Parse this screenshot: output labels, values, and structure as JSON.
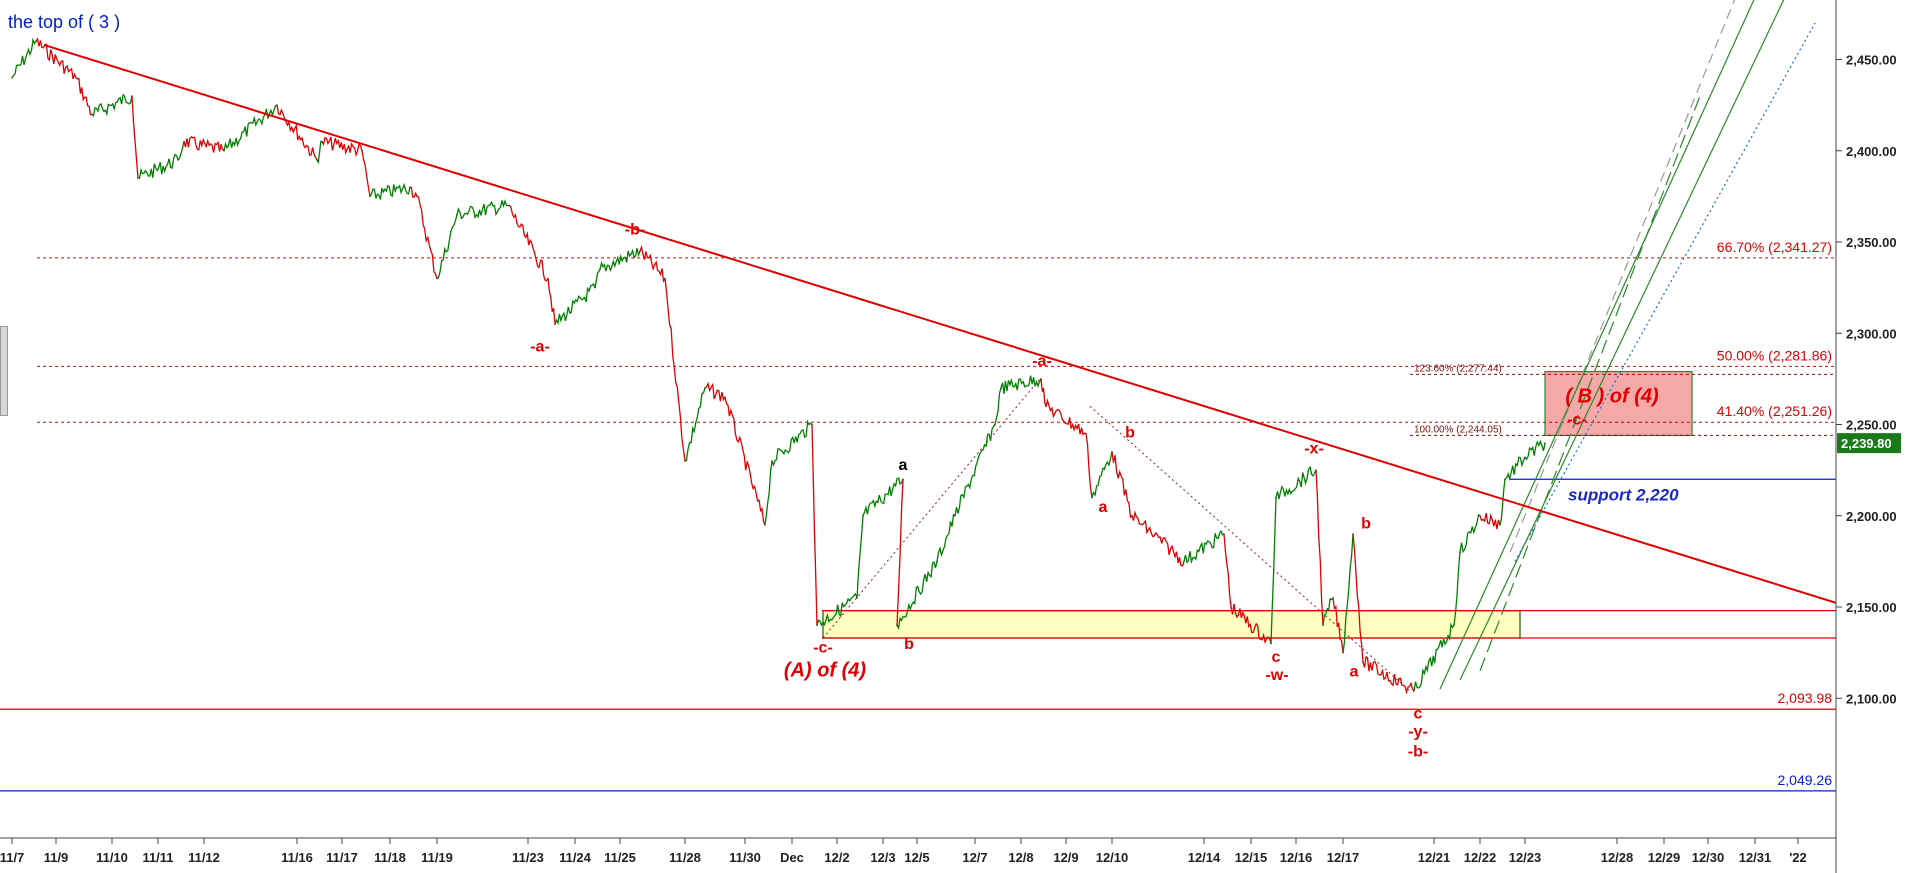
{
  "header": {
    "title": "the top of ( 3 )"
  },
  "chart_data": {
    "type": "line",
    "title": "the top of ( 3 )",
    "xlabel": "",
    "ylabel": "",
    "ylim": [
      2040,
      2480
    ],
    "y_ticks": [
      {
        "value": 2450,
        "label": "2,450.00"
      },
      {
        "value": 2400,
        "label": "2,400.00"
      },
      {
        "value": 2350,
        "label": "2,350.00"
      },
      {
        "value": 2300,
        "label": "2,300.00"
      },
      {
        "value": 2250,
        "label": "2,250.00"
      },
      {
        "value": 2200,
        "label": "2,200.00"
      },
      {
        "value": 2150,
        "label": "2,150.00"
      },
      {
        "value": 2100,
        "label": "2,100.00"
      }
    ],
    "x_ticks": [
      "11/7",
      "11/9",
      "11/10",
      "11/11",
      "11/12",
      "11/16",
      "11/17",
      "11/18",
      "11/19",
      "11/23",
      "11/24",
      "11/25",
      "11/28",
      "11/30",
      "Dec",
      "12/2",
      "12/3",
      "12/5",
      "12/7",
      "12/8",
      "12/9",
      "12/10",
      "12/14",
      "12/15",
      "12/16",
      "12/17",
      "12/21",
      "12/22",
      "12/23",
      "12/28",
      "12/29",
      "12/30",
      "12/31",
      "'22"
    ],
    "price_series": {
      "name": "",
      "colors": {
        "up": "#008000",
        "down": "#e00000"
      },
      "points": [
        [
          "11/7",
          2440
        ],
        [
          "11/9",
          2460
        ],
        [
          "11/9",
          2440
        ],
        [
          "11/10",
          2420
        ],
        [
          "11/10",
          2430
        ],
        [
          "11/11",
          2385
        ],
        [
          "11/11",
          2395
        ],
        [
          "11/12",
          2405
        ],
        [
          "11/12",
          2400
        ],
        [
          "11/16",
          2425
        ],
        [
          "11/16",
          2395
        ],
        [
          "11/17",
          2405
        ],
        [
          "11/17",
          2400
        ],
        [
          "11/18",
          2375
        ],
        [
          "11/18",
          2380
        ],
        [
          "11/19",
          2375
        ],
        [
          "11/19",
          2330
        ],
        [
          "11/19",
          2365
        ],
        [
          "11/23",
          2370
        ],
        [
          "11/23",
          2330
        ],
        [
          "11/24",
          2305
        ],
        [
          "11/24",
          2325
        ],
        [
          "11/25",
          2335
        ],
        [
          "11/25",
          2345
        ],
        [
          "11/28",
          2330
        ],
        [
          "11/28",
          2230
        ],
        [
          "11/28",
          2270
        ],
        [
          "11/30",
          2265
        ],
        [
          "11/30",
          2195
        ],
        [
          "Dec",
          2230
        ],
        [
          "Dec",
          2250
        ],
        [
          "12/2",
          2140
        ],
        [
          "12/2",
          2155
        ],
        [
          "12/3",
          2200
        ],
        [
          "12/3",
          2220
        ],
        [
          "12/5",
          2140
        ],
        [
          "12/5",
          2175
        ],
        [
          "12/7",
          2200
        ],
        [
          "12/7",
          2250
        ],
        [
          "12/8",
          2270
        ],
        [
          "12/8",
          2275
        ],
        [
          "12/9",
          2260
        ],
        [
          "12/9",
          2245
        ],
        [
          "12/10",
          2210
        ],
        [
          "12/10",
          2235
        ],
        [
          "12/10",
          2200
        ],
        [
          "12/14",
          2175
        ],
        [
          "12/14",
          2190
        ],
        [
          "12/15",
          2150
        ],
        [
          "12/15",
          2130
        ],
        [
          "12/16",
          2210
        ],
        [
          "12/16",
          2225
        ],
        [
          "12/17",
          2140
        ],
        [
          "12/17",
          2155
        ],
        [
          "12/17",
          2125
        ],
        [
          "12/17",
          2190
        ],
        [
          "12/17",
          2120
        ],
        [
          "12/21",
          2104
        ],
        [
          "12/21",
          2140
        ],
        [
          "12/22",
          2180
        ],
        [
          "12/22",
          2200
        ],
        [
          "12/22",
          2195
        ],
        [
          "12/23",
          2220
        ],
        [
          "12/23",
          2232
        ],
        [
          "12/23",
          2239.8
        ]
      ]
    },
    "last_price": "2,239.80",
    "horizontal_lines": [
      {
        "value": 2341.27,
        "label": "66.70% (2,341.27)",
        "style": "dotted",
        "color": "#e00000"
      },
      {
        "value": 2281.86,
        "label": "50.00% (2,281.86)",
        "style": "dotted",
        "color": "#e00000"
      },
      {
        "value": 2251.26,
        "label": "41.40% (2,251.26)",
        "style": "dotted",
        "color": "#e00000"
      },
      {
        "value": 2277.44,
        "label": "123.60% (2,277.44)",
        "style": "dotted",
        "color": "#7a1010"
      },
      {
        "value": 2244.05,
        "label": "100.00% (2,244.05)",
        "style": "dotted",
        "color": "#7a1010"
      },
      {
        "value": 2220,
        "label": "support 2,220",
        "style": "solid",
        "color": "#0020d0"
      },
      {
        "value": 2148,
        "label": "",
        "style": "solid",
        "color": "#e00000"
      },
      {
        "value": 2133,
        "label": "",
        "style": "solid",
        "color": "#e00000"
      },
      {
        "value": 2093.98,
        "label": "2,093.98",
        "style": "solid",
        "color": "#e00000"
      },
      {
        "value": 2049.26,
        "label": "2,049.26",
        "style": "solid",
        "color": "#0020d0"
      }
    ],
    "zones": [
      {
        "name": "support-zone",
        "from": "Dec",
        "to": "12/23",
        "y_from": 2133,
        "y_to": 2148,
        "color": "#ffffc0"
      },
      {
        "name": "target-zone",
        "from": "12/23",
        "to": "12/28",
        "y_from": 2244,
        "y_to": 2279,
        "color": "#f5a8a8"
      }
    ],
    "annotations": [
      {
        "text": "-b-",
        "x": "11/25",
        "y": 2354,
        "color": "#e00000"
      },
      {
        "text": "-a-",
        "x": "11/23",
        "y": 2290,
        "color": "#e00000"
      },
      {
        "text": "-a-",
        "x": "12/8",
        "y": 2282,
        "color": "#e00000"
      },
      {
        "text": "a",
        "x": "12/3",
        "y": 2225,
        "color": "#000000"
      },
      {
        "text": "b",
        "x": "12/9",
        "y": 2243,
        "color": "#e00000"
      },
      {
        "text": "a",
        "x": "12/10",
        "y": 2202,
        "color": "#e00000"
      },
      {
        "text": "-x-",
        "x": "12/16",
        "y": 2234,
        "color": "#e00000"
      },
      {
        "text": "b",
        "x": "12/17",
        "y": 2193,
        "color": "#e00000"
      },
      {
        "text": "a",
        "x": "12/17",
        "y": 2112,
        "color": "#e00000"
      },
      {
        "text": "c",
        "x": "12/15",
        "y": 2120,
        "color": "#e00000"
      },
      {
        "text": "-w-",
        "x": "12/15",
        "y": 2110,
        "color": "#e00000"
      },
      {
        "text": "b",
        "x": "12/5",
        "y": 2127,
        "color": "#e00000"
      },
      {
        "text": "-c-",
        "x": "Dec",
        "y": 2125,
        "color": "#e00000"
      },
      {
        "text": "(A) of (4)",
        "x": "Dec",
        "y": 2112,
        "color": "#e00000"
      },
      {
        "text": "c",
        "x": "12/21",
        "y": 2089,
        "color": "#e00000"
      },
      {
        "text": "-y-",
        "x": "12/21",
        "y": 2079,
        "color": "#e00000"
      },
      {
        "text": "-b-",
        "x": "12/21",
        "y": 2068,
        "color": "#e00000"
      },
      {
        "text": "( B ) of (4)",
        "x": "12/23",
        "y": 2262,
        "color": "#e00000"
      },
      {
        "text": "-c-",
        "x": "12/23",
        "y": 2250,
        "color": "#e00000"
      }
    ],
    "trendline": {
      "from": [
        "11/9",
        2458
      ],
      "to": [
        "'22",
        2140
      ],
      "color": "#e00000"
    },
    "grid": false
  }
}
